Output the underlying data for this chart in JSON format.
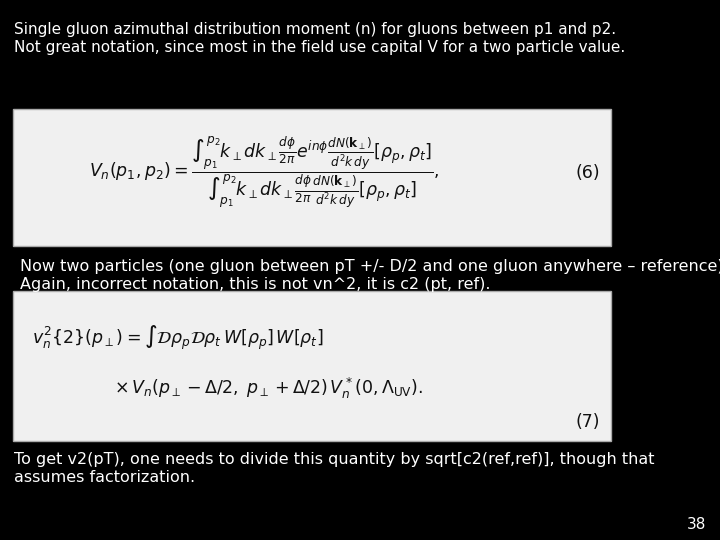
{
  "background_color": "#000000",
  "text_color": "#ffffff",
  "box_bg_color": "#f0f0f0",
  "box_edge_color": "#aaaaaa",
  "title_text_line1": "Single gluon azimuthal distribution moment (n) for gluons between p1 and p2.",
  "title_text_line2": "Not great notation, since most in the field use capital V for a two particle value.",
  "middle_text_line1": "Now two particles (one gluon between pT +/- D/2 and one gluon anywhere – reference)",
  "middle_text_line2": "Again, incorrect notation, this is not vn^2, it is c2 (pt, ref).",
  "bottom_text_line1": "To get v2(pT), one needs to divide this quantity by sqrt[c2(ref,ref)], though that",
  "bottom_text_line2": "assumes factorization.",
  "page_number": "38",
  "eq1_label": "(6)",
  "eq2_label": "(7)",
  "title_fontsize": 11.0,
  "body_fontsize": 11.5,
  "eq_fontsize": 12.5,
  "page_fontsize": 11
}
